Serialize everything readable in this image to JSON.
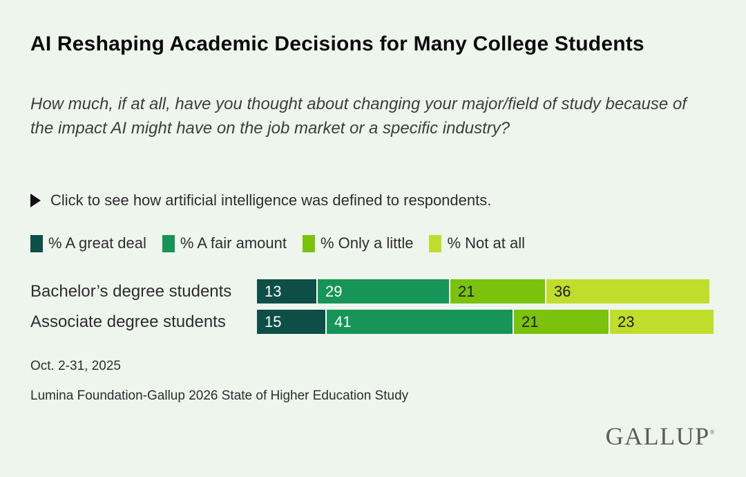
{
  "page": {
    "background_color": "#eef5ed",
    "title": "AI Reshaping Academic Decisions for Many College Students",
    "subtitle": "How much, if at all, have you thought about changing your major/field of study because of the impact AI might have on the job market or a specific industry?",
    "disclosure": {
      "icon": "play-triangle-icon",
      "text": "Click to see how artificial intelligence was defined to respondents."
    },
    "date_note": "Oct. 2-31, 2025",
    "source_note": "Lumina Foundation-Gallup 2026 State of Higher Education Study",
    "brand": "GALLUP",
    "brand_registered_mark": "®"
  },
  "chart_data": {
    "type": "bar",
    "orientation": "horizontal-stacked",
    "title": "AI Reshaping Academic Decisions for Many College Students",
    "categories": [
      "Bachelor’s degree students",
      "Associate degree students"
    ],
    "series": [
      {
        "name": "% A great deal",
        "color": "#0d4f47",
        "text_color": "#ffffff",
        "values": [
          13,
          15
        ]
      },
      {
        "name": "% A fair amount",
        "color": "#179457",
        "text_color": "#ffffff",
        "values": [
          29,
          41
        ]
      },
      {
        "name": "% Only a little",
        "color": "#7ac20b",
        "text_color": "#1a1a1a",
        "values": [
          21,
          21
        ]
      },
      {
        "name": "% Not at all",
        "color": "#c0dd2b",
        "text_color": "#1a1a1a",
        "values": [
          36,
          23
        ]
      }
    ],
    "value_labels": true,
    "xlim": [
      0,
      100
    ],
    "grid": false,
    "legend_position": "top"
  }
}
